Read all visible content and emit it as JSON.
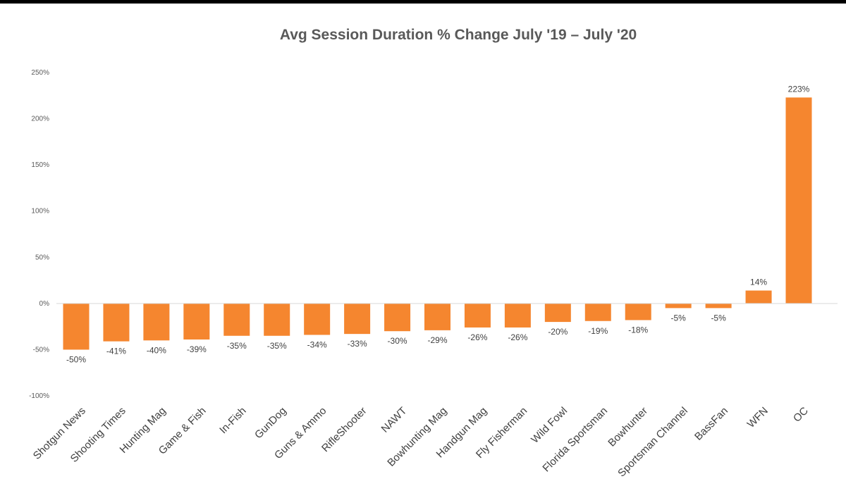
{
  "chart_data": {
    "type": "bar",
    "title": "Avg Session Duration % Change July '19 – July '20",
    "xlabel": "",
    "ylabel": "",
    "ylim": [
      -100,
      250
    ],
    "yticks": [
      250,
      200,
      150,
      100,
      50,
      0,
      -50,
      -100
    ],
    "ytick_labels": [
      "250%",
      "200%",
      "150%",
      "100%",
      "50%",
      "0%",
      "-50%",
      "-100%"
    ],
    "grid": false,
    "legend": "none",
    "bar_color": "#F5862F",
    "axis_color": "#D9D9D9",
    "categories": [
      "Shotgun News",
      "Shooting Times",
      "Hunting Mag",
      "Game & Fish",
      "In-Fish",
      "GunDog",
      "Guns & Ammo",
      "RifleShooter",
      "NAWT",
      "Bowhunting Mag",
      "Handgun Mag",
      "Fly Fisherman",
      "Wild Fowl",
      "Florida Sportsman",
      "Bowhunter",
      "Sportsman Channel",
      "BassFan",
      "WFN",
      "OC"
    ],
    "values": [
      -50,
      -41,
      -40,
      -39,
      -35,
      -35,
      -34,
      -33,
      -30,
      -29,
      -26,
      -26,
      -20,
      -19,
      -18,
      -5,
      -5,
      14,
      223
    ],
    "data_labels": [
      "-50%",
      "-41%",
      "-40%",
      "-39%",
      "-35%",
      "-35%",
      "-34%",
      "-33%",
      "-30%",
      "-29%",
      "-26%",
      "-26%",
      "-20%",
      "-19%",
      "-18%",
      "-5%",
      "-5%",
      "14%",
      "223%"
    ]
  }
}
